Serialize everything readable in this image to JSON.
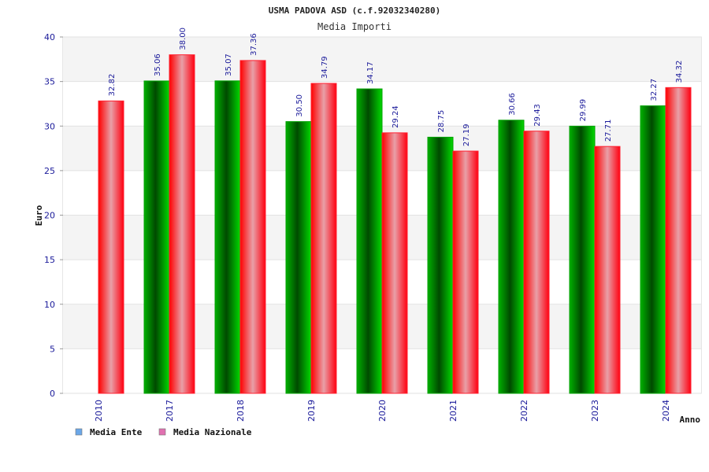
{
  "chart_data": {
    "type": "bar",
    "title": "USMA PADOVA ASD (c.f.92032340280)",
    "subtitle": "Media Importi",
    "xlabel": "Anno",
    "ylabel": "Euro",
    "ylim": [
      0,
      40
    ],
    "yticks": [
      0,
      5,
      10,
      15,
      20,
      25,
      30,
      35,
      40
    ],
    "grid": true,
    "legend_position": "bottom-left",
    "categories": [
      "2010",
      "2017",
      "2018",
      "2019",
      "2020",
      "2021",
      "2022",
      "2023",
      "2024"
    ],
    "series": [
      {
        "name": "Media Ente",
        "legend_color": "#6aa7e8",
        "bar_color": "#00c000",
        "values": [
          null,
          35.06,
          35.07,
          30.5,
          34.17,
          28.75,
          30.66,
          29.99,
          32.27
        ],
        "labels": [
          "",
          "35.06",
          "35.07",
          "30.50",
          "34.17",
          "28.75",
          "30.66",
          "29.99",
          "32.27"
        ]
      },
      {
        "name": "Media Nazionale",
        "legend_color": "#e070b0",
        "bar_color": "#f01020",
        "values": [
          32.82,
          38.0,
          37.36,
          34.79,
          29.24,
          27.19,
          29.43,
          27.71,
          34.32
        ],
        "labels": [
          "32.82",
          "38.00",
          "37.36",
          "34.79",
          "29.24",
          "27.19",
          "29.43",
          "27.71",
          "34.32"
        ]
      }
    ]
  }
}
